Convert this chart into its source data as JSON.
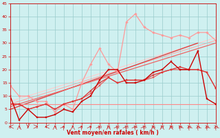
{
  "xlabel": "Vent moyen/en rafales ( km/h )",
  "xlim": [
    0,
    23
  ],
  "ylim": [
    0,
    45
  ],
  "yticks": [
    0,
    5,
    10,
    15,
    20,
    25,
    30,
    35,
    40,
    45
  ],
  "xticks": [
    0,
    1,
    2,
    3,
    4,
    5,
    6,
    7,
    8,
    9,
    10,
    11,
    12,
    13,
    14,
    15,
    16,
    17,
    18,
    19,
    20,
    21,
    22,
    23
  ],
  "bg_color": "#cff0f0",
  "grid_color": "#99cccc",
  "series": [
    {
      "x": [
        0,
        1,
        2,
        3,
        4,
        5,
        6,
        7,
        8,
        9,
        10,
        11,
        12,
        13,
        14,
        15,
        16,
        17,
        18,
        19,
        20,
        21,
        22,
        23
      ],
      "y": [
        10,
        1,
        5,
        2,
        2,
        3,
        5,
        4,
        8,
        10,
        16,
        20,
        20,
        15,
        15,
        16,
        19,
        20,
        23,
        20,
        20,
        27,
        9,
        7
      ],
      "color": "#cc0000",
      "lw": 1.0,
      "marker": "s",
      "ms": 2.0,
      "zorder": 5
    },
    {
      "x": [
        0,
        1,
        2,
        3,
        4,
        5,
        6,
        7,
        8,
        9,
        10,
        11,
        12,
        13,
        14,
        15,
        16,
        17,
        18,
        19,
        20,
        21,
        22,
        23
      ],
      "y": [
        7,
        7,
        5,
        6,
        7,
        5,
        7,
        8,
        9,
        12,
        15,
        17,
        15,
        16,
        16,
        16,
        18,
        19,
        20,
        21,
        20,
        20,
        19,
        13
      ],
      "color": "#dd3333",
      "lw": 0.9,
      "marker": "s",
      "ms": 1.8,
      "zorder": 4
    },
    {
      "x": [
        0,
        1,
        2,
        3,
        4,
        5,
        6,
        7,
        8,
        9,
        10,
        11,
        12,
        13,
        14,
        15,
        16,
        17,
        18,
        19,
        20,
        21,
        22,
        23
      ],
      "y": [
        7,
        7,
        5,
        6,
        7,
        5,
        7,
        8,
        9,
        11,
        14,
        17,
        15,
        16,
        16,
        16,
        17,
        19,
        20,
        20,
        20,
        20,
        19,
        13
      ],
      "color": "#ee5555",
      "lw": 0.8,
      "marker": "s",
      "ms": 1.5,
      "zorder": 3
    },
    {
      "x": [
        0,
        1,
        2,
        3,
        4,
        5,
        6,
        7,
        8,
        9,
        10,
        11,
        12,
        13,
        14,
        15,
        16,
        17,
        18,
        19,
        20,
        21,
        22,
        23
      ],
      "y": [
        14,
        10,
        10,
        8,
        8,
        4,
        7,
        5,
        15,
        22,
        28,
        22,
        19,
        38,
        41,
        36,
        34,
        33,
        32,
        33,
        32,
        34,
        34,
        31
      ],
      "color": "#ff9999",
      "lw": 0.9,
      "marker": "D",
      "ms": 1.8,
      "zorder": 2
    },
    {
      "x": [
        0,
        1,
        2,
        3,
        4,
        5,
        6,
        7,
        8,
        9,
        10,
        11,
        12,
        13,
        14,
        15,
        16,
        17,
        18,
        19,
        20,
        21,
        22,
        23
      ],
      "y": [
        7,
        7,
        7,
        7,
        7,
        7,
        7,
        7,
        7,
        7,
        7,
        7,
        7,
        7,
        7,
        7,
        7,
        7,
        7,
        7,
        7,
        7,
        7,
        7
      ],
      "color": "#ff8888",
      "lw": 0.8,
      "marker": null,
      "ms": 0,
      "zorder": 2
    }
  ],
  "trend_lines": [
    {
      "x": [
        0,
        21
      ],
      "y": [
        5,
        30
      ],
      "color": "#dd4444",
      "lw": 1.0,
      "zorder": 2
    },
    {
      "x": [
        0,
        23
      ],
      "y": [
        6,
        30
      ],
      "color": "#ee6666",
      "lw": 0.9,
      "zorder": 2
    },
    {
      "x": [
        0,
        23
      ],
      "y": [
        7,
        31
      ],
      "color": "#ffaaaa",
      "lw": 0.8,
      "zorder": 1
    },
    {
      "x": [
        0,
        23
      ],
      "y": [
        8,
        32
      ],
      "color": "#ffcccc",
      "lw": 0.8,
      "zorder": 1
    }
  ],
  "wind_arrows": {
    "x": [
      0,
      1,
      2,
      3,
      4,
      5,
      6,
      7,
      8,
      9,
      10,
      11,
      12,
      13,
      14,
      15,
      16,
      17,
      18,
      19,
      20,
      21,
      22,
      23
    ],
    "angles": [
      270,
      0,
      180,
      90,
      270,
      0,
      45,
      0,
      45,
      45,
      45,
      0,
      45,
      45,
      45,
      45,
      0,
      0,
      0,
      315,
      315,
      315,
      315,
      315
    ]
  }
}
